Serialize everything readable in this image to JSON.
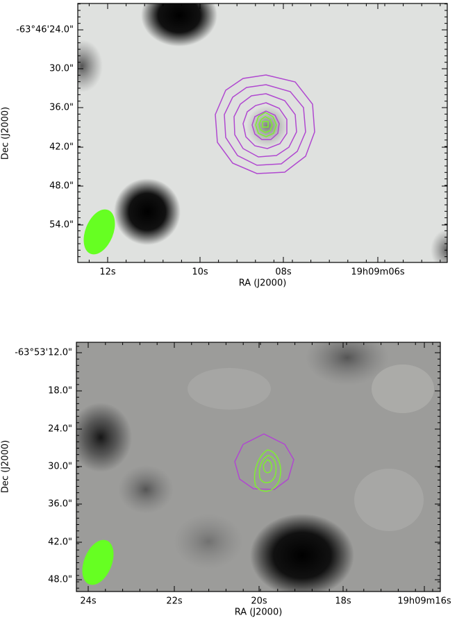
{
  "panels": [
    {
      "xlabel": "RA (J2000)",
      "ylabel": "Dec (J2000)",
      "xticks": [
        "12s",
        "10s",
        "08s",
        "19h09m06s"
      ],
      "yticks": [
        "-63°46'24.0\"",
        "30.0\"",
        "36.0\"",
        "42.0\"",
        "48.0\"",
        "54.0\""
      ]
    },
    {
      "xlabel": "RA (J2000)",
      "ylabel": "Dec (J2000)",
      "xticks": [
        "24s",
        "22s",
        "20s",
        "18s",
        "19h09m16s"
      ],
      "yticks": [
        "-63°53'12.0\"",
        "18.0\"",
        "24.0\"",
        "30.0\"",
        "36.0\"",
        "42.0\"",
        "48.0\""
      ]
    }
  ]
}
